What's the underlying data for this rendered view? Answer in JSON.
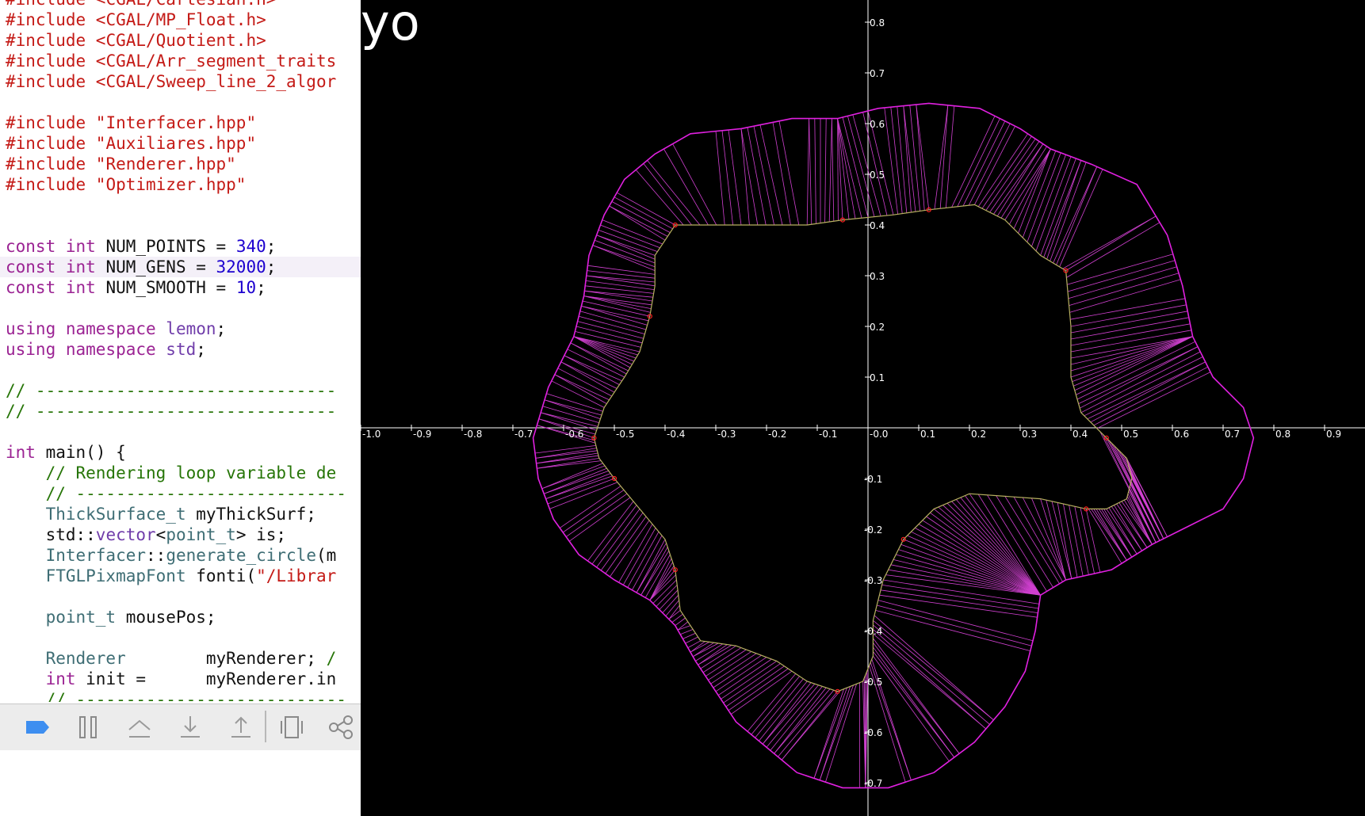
{
  "editor": {
    "lines": [
      [
        {
          "t": "#include ",
          "c": "t-str"
        },
        {
          "t": "<CGAL/Cartesian.h>",
          "c": "t-str"
        }
      ],
      [
        {
          "t": "#include ",
          "c": "t-str"
        },
        {
          "t": "<CGAL/MP_Float.h>",
          "c": "t-str"
        }
      ],
      [
        {
          "t": "#include ",
          "c": "t-str"
        },
        {
          "t": "<CGAL/Quotient.h>",
          "c": "t-str"
        }
      ],
      [
        {
          "t": "#include ",
          "c": "t-str"
        },
        {
          "t": "<CGAL/Arr_segment_traits",
          "c": "t-str"
        }
      ],
      [
        {
          "t": "#include ",
          "c": "t-str"
        },
        {
          "t": "<CGAL/Sweep_line_2_algor",
          "c": "t-str"
        }
      ],
      [],
      [
        {
          "t": "#include ",
          "c": "t-str"
        },
        {
          "t": "\"Interfacer.hpp\"",
          "c": "t-str"
        }
      ],
      [
        {
          "t": "#include ",
          "c": "t-str"
        },
        {
          "t": "\"Auxiliares.hpp\"",
          "c": "t-str"
        }
      ],
      [
        {
          "t": "#include ",
          "c": "t-str"
        },
        {
          "t": "\"Renderer.hpp\"",
          "c": "t-str"
        }
      ],
      [
        {
          "t": "#include ",
          "c": "t-str"
        },
        {
          "t": "\"Optimizer.hpp\"",
          "c": "t-str"
        }
      ],
      [],
      [],
      [
        {
          "t": "const ",
          "c": "t-kw"
        },
        {
          "t": "int ",
          "c": "t-kw"
        },
        {
          "t": "NUM_POINTS = ",
          "c": "t-plain"
        },
        {
          "t": "340",
          "c": "t-num"
        },
        {
          "t": ";",
          "c": "t-plain"
        }
      ],
      [
        {
          "t": "const ",
          "c": "t-kw"
        },
        {
          "t": "int ",
          "c": "t-kw"
        },
        {
          "t": "NUM_GENS = ",
          "c": "t-plain"
        },
        {
          "t": "32000",
          "c": "t-num"
        },
        {
          "t": ";",
          "c": "t-plain"
        }
      ],
      [
        {
          "t": "const ",
          "c": "t-kw"
        },
        {
          "t": "int ",
          "c": "t-kw"
        },
        {
          "t": "NUM_SMOOTH = ",
          "c": "t-plain"
        },
        {
          "t": "10",
          "c": "t-num"
        },
        {
          "t": ";",
          "c": "t-plain"
        }
      ],
      [],
      [
        {
          "t": "using ",
          "c": "t-kw"
        },
        {
          "t": "namespace ",
          "c": "t-kw"
        },
        {
          "t": "lemon",
          "c": "t-type"
        },
        {
          "t": ";",
          "c": "t-plain"
        }
      ],
      [
        {
          "t": "using ",
          "c": "t-kw"
        },
        {
          "t": "namespace ",
          "c": "t-kw"
        },
        {
          "t": "std",
          "c": "t-type"
        },
        {
          "t": ";",
          "c": "t-plain"
        }
      ],
      [],
      [
        {
          "t": "// ------------------------------",
          "c": "t-cmt"
        }
      ],
      [
        {
          "t": "// ------------------------------",
          "c": "t-cmt"
        }
      ],
      [],
      [
        {
          "t": "int ",
          "c": "t-kw"
        },
        {
          "t": "main() {",
          "c": "t-plain"
        }
      ],
      [
        {
          "t": "    // Rendering loop variable de",
          "c": "t-cmt"
        }
      ],
      [
        {
          "t": "    // ---------------------------",
          "c": "t-cmt"
        }
      ],
      [
        {
          "t": "    ",
          "c": "t-plain"
        },
        {
          "t": "ThickSurface_t",
          "c": "t-tv"
        },
        {
          "t": " myThickSurf;",
          "c": "t-plain"
        }
      ],
      [
        {
          "t": "    std::",
          "c": "t-plain"
        },
        {
          "t": "vector",
          "c": "t-type"
        },
        {
          "t": "<",
          "c": "t-plain"
        },
        {
          "t": "point_t",
          "c": "t-tv"
        },
        {
          "t": "> is;",
          "c": "t-plain"
        }
      ],
      [
        {
          "t": "    ",
          "c": "t-plain"
        },
        {
          "t": "Interfacer",
          "c": "t-tv"
        },
        {
          "t": "::",
          "c": "t-plain"
        },
        {
          "t": "generate_circle",
          "c": "t-tv"
        },
        {
          "t": "(m",
          "c": "t-plain"
        }
      ],
      [
        {
          "t": "    ",
          "c": "t-plain"
        },
        {
          "t": "FTGLPixmapFont",
          "c": "t-tv"
        },
        {
          "t": " fonti(",
          "c": "t-plain"
        },
        {
          "t": "\"/Librar",
          "c": "t-str"
        }
      ],
      [],
      [
        {
          "t": "    ",
          "c": "t-plain"
        },
        {
          "t": "point_t",
          "c": "t-tv"
        },
        {
          "t": " mousePos;",
          "c": "t-plain"
        }
      ],
      [],
      [
        {
          "t": "    ",
          "c": "t-plain"
        },
        {
          "t": "Renderer",
          "c": "t-tv"
        },
        {
          "t": "        myRenderer; ",
          "c": "t-plain"
        },
        {
          "t": "/",
          "c": "t-cmt"
        }
      ],
      [
        {
          "t": "    ",
          "c": "t-plain"
        },
        {
          "t": "int ",
          "c": "t-kw"
        },
        {
          "t": "init =      myRenderer.in",
          "c": "t-plain"
        }
      ],
      [
        {
          "t": "    // ---------------------------",
          "c": "t-cmt"
        }
      ]
    ],
    "highlight_line": 13
  },
  "debug_bar": {
    "buttons": [
      "breakpoints-toggle-icon",
      "pause-icon",
      "step-over-icon",
      "step-into-icon",
      "step-out-icon",
      "view-debugger-icon",
      "memory-graph-icon"
    ]
  },
  "viewport": {
    "overlay_text": "yo",
    "x_ticks": [
      "-1.0",
      "-0.9",
      "-0.8",
      "-0.7",
      "-0.6",
      "-0.5",
      "-0.4",
      "-0.3",
      "-0.2",
      "-0.1",
      "-0.0",
      "0.1",
      "0.2",
      "0.3",
      "0.4",
      "0.5",
      "0.6",
      "0.7",
      "0.8",
      "0.9"
    ],
    "y_ticks_pos": [
      "0.8",
      "0.7",
      "0.6",
      "0.5",
      "0.4",
      "0.3",
      "0.2",
      "0.1"
    ],
    "y_ticks_neg": [
      "-0.1",
      "-0.2",
      "-0.3",
      "-0.4",
      "-0.5",
      "-0.6",
      "-0.7"
    ],
    "colors": {
      "outer": "#e020e0",
      "inner": "#b8b060",
      "spokes": "#d040d0",
      "markers": "#ff2020",
      "axes": "#ffffff"
    }
  }
}
